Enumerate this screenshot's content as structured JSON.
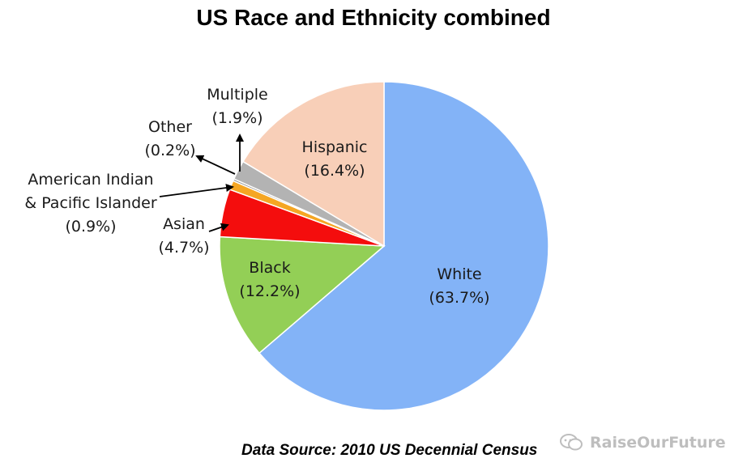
{
  "chart_data": {
    "type": "pie",
    "title": "US Race and Ethnicity combined",
    "slices": [
      {
        "name": "White",
        "value": 63.7,
        "value_label": "(63.7%)",
        "color": "#83b3f7"
      },
      {
        "name": "Black",
        "value": 12.2,
        "value_label": "(12.2%)",
        "color": "#93cf56"
      },
      {
        "name": "Asian",
        "value": 4.7,
        "value_label": "(4.7%)",
        "color": "#f40d0d"
      },
      {
        "name": "American Indian & Pacific Islander",
        "name_lines": [
          "American Indian",
          "& Pacific Islander"
        ],
        "value": 0.9,
        "value_label": "(0.9%)",
        "color": "#f5a623"
      },
      {
        "name": "Other",
        "value": 0.2,
        "value_label": "(0.2%)",
        "color": "#8f8f8f"
      },
      {
        "name": "Multiple",
        "value": 1.9,
        "value_label": "(1.9%)",
        "color": "#b3b3b3"
      },
      {
        "name": "Hispanic",
        "value": 16.4,
        "value_label": "(16.4%)",
        "color": "#f8cfb8"
      }
    ],
    "start_angle_deg": 0,
    "direction": "clockwise",
    "source": "Data Source: 2010 US Decennial Census"
  },
  "watermark": {
    "text": "RaiseOurFuture",
    "icon": "chat-bubble-icon"
  }
}
